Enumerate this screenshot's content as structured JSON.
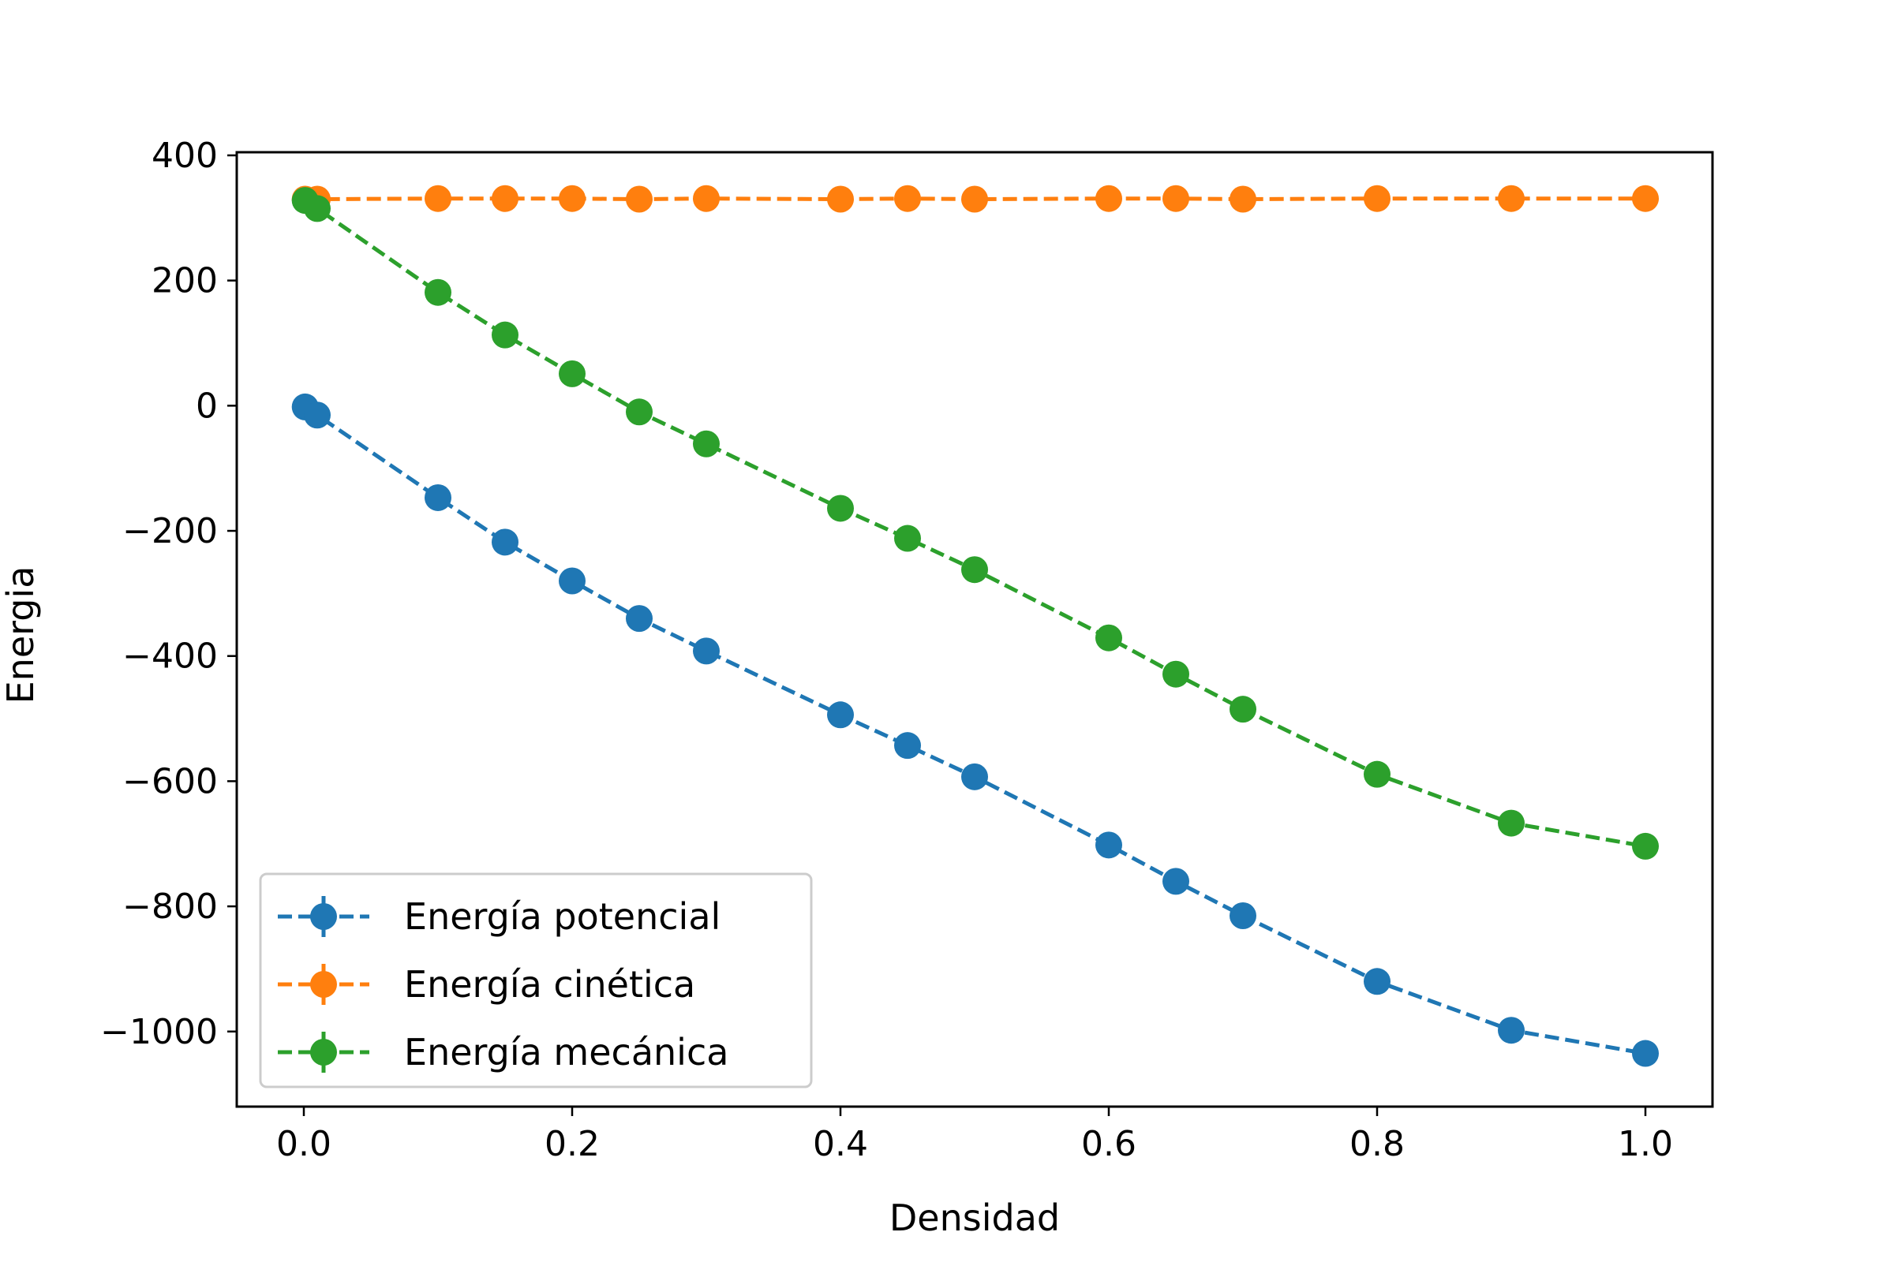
{
  "chart_data": {
    "type": "line",
    "xlabel": "Densidad",
    "ylabel": "Energia",
    "xlim": [
      -0.05,
      1.05
    ],
    "ylim": [
      -1120,
      405
    ],
    "xticks": [
      0.0,
      0.2,
      0.4,
      0.6,
      0.8,
      1.0
    ],
    "xtick_labels": [
      "0.0",
      "0.2",
      "0.4",
      "0.6",
      "0.8",
      "1.0"
    ],
    "yticks": [
      400,
      200,
      0,
      -200,
      -400,
      -600,
      -800,
      -1000
    ],
    "ytick_labels": [
      "400",
      "200",
      "0",
      "−200",
      "−400",
      "−600",
      "−800",
      "−1000"
    ],
    "grid": false,
    "legend_position": "lower-left",
    "x": [
      0.001,
      0.01,
      0.1,
      0.15,
      0.2,
      0.25,
      0.3,
      0.4,
      0.45,
      0.5,
      0.6,
      0.65,
      0.7,
      0.8,
      0.9,
      1.0
    ],
    "series": [
      {
        "name": "Energía potencial",
        "color": "#1f77b4",
        "values": [
          -2,
          -15,
          -147,
          -218,
          -280,
          -340,
          -392,
          -494,
          -543,
          -593,
          -702,
          -760,
          -815,
          -920,
          -998,
          -1035
        ]
      },
      {
        "name": "Energía cinética",
        "color": "#ff7f0e",
        "values": [
          330,
          330,
          331,
          331,
          331,
          330,
          331,
          330,
          331,
          330,
          331,
          331,
          330,
          331,
          331,
          331
        ]
      },
      {
        "name": "Energía mecánica",
        "color": "#2ca02c",
        "values": [
          328,
          315,
          181,
          113,
          51,
          -10,
          -61,
          -164,
          -212,
          -262,
          -371,
          -429,
          -485,
          -589,
          -667,
          -704
        ]
      }
    ]
  }
}
